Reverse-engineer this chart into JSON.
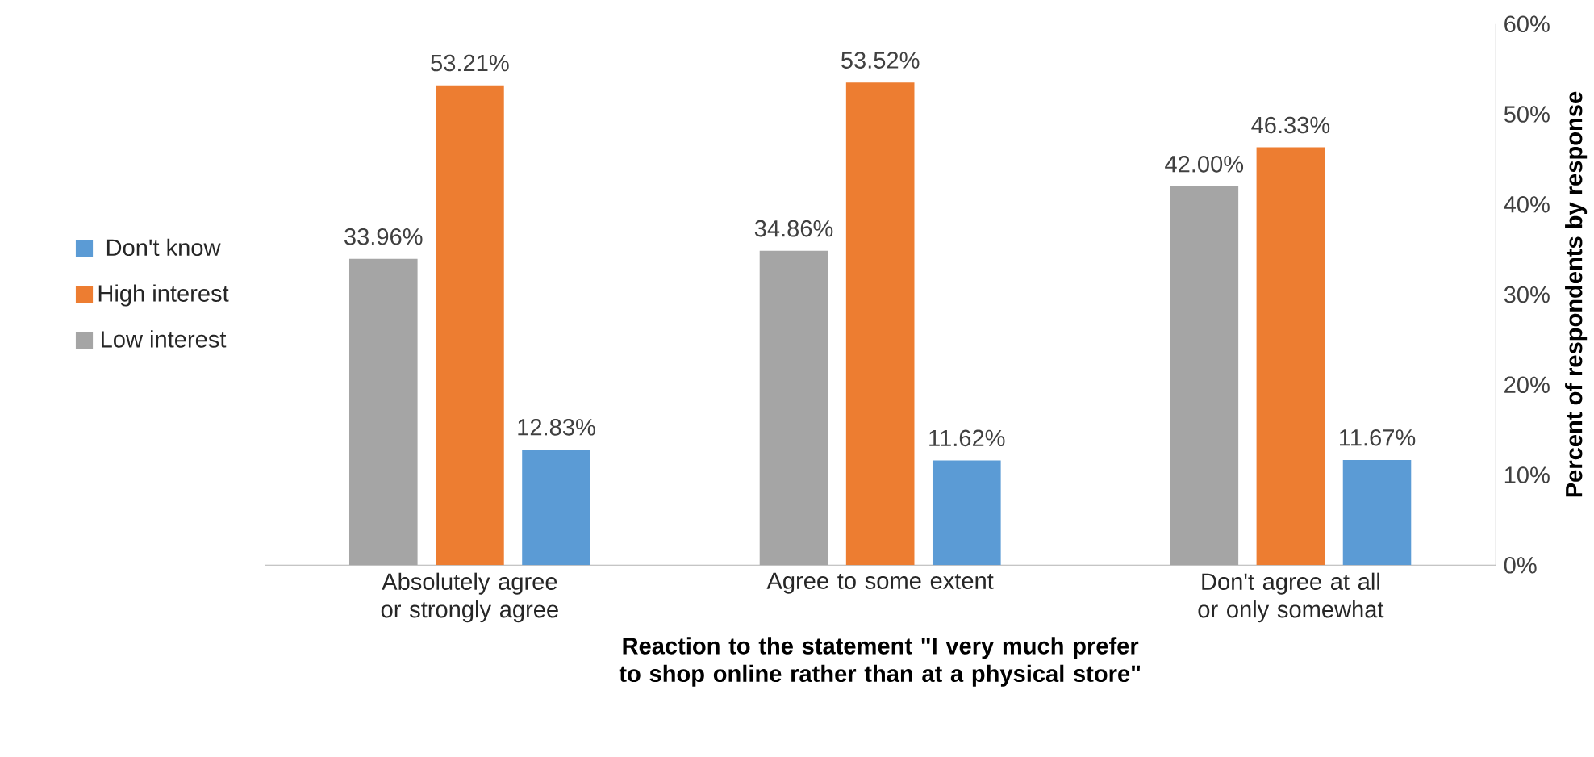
{
  "chart_data": {
    "type": "bar",
    "categories": [
      "Absolutely agree or strongly agree",
      "Agree to some extent",
      "Don't agree at all or only somewhat"
    ],
    "series": [
      {
        "name": "Low interest",
        "color": "#a5a5a5",
        "values": [
          33.96,
          34.86,
          42.0
        ],
        "value_labels": [
          "33.96%",
          "34.86%",
          "42.00%"
        ]
      },
      {
        "name": "High interest",
        "color": "#ed7d31",
        "values": [
          53.21,
          53.52,
          46.33
        ],
        "value_labels": [
          "53.21%",
          "53.52%",
          "46.33%"
        ]
      },
      {
        "name": "Don't know",
        "color": "#5b9bd5",
        "values": [
          12.83,
          11.62,
          11.67
        ],
        "value_labels": [
          "12.83%",
          "11.62%",
          "11.67%"
        ]
      }
    ],
    "xlabel": "Reaction to the statement \"I very much prefer to shop online rather than at a physical store\"",
    "ylabel": "Percent of respondents by response",
    "ylim": [
      0,
      60
    ],
    "yticks": [
      {
        "value": 0,
        "label": "0%"
      },
      {
        "value": 10,
        "label": "10%"
      },
      {
        "value": 20,
        "label": "20%"
      },
      {
        "value": 30,
        "label": "30%"
      },
      {
        "value": 40,
        "label": "40%"
      },
      {
        "value": 50,
        "label": "50%"
      },
      {
        "value": 60,
        "label": "60%"
      }
    ],
    "legend": "left",
    "grid": false
  }
}
